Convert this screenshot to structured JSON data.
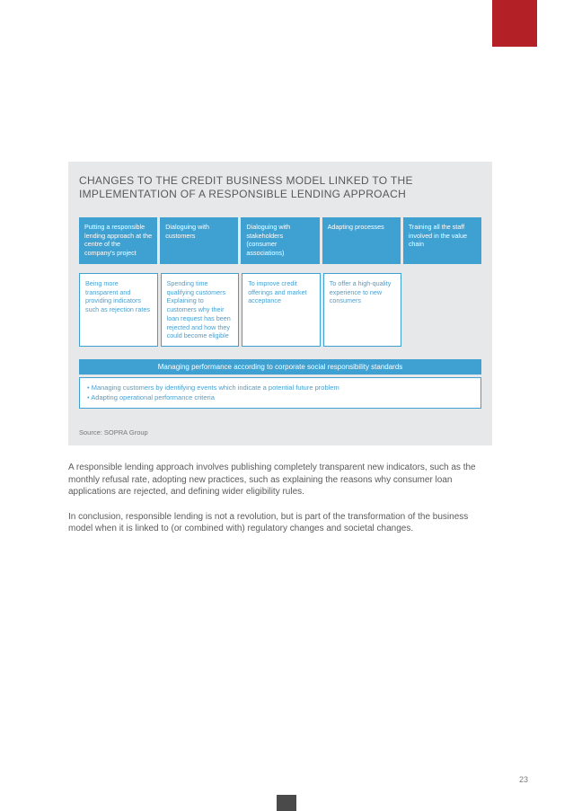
{
  "infobox": {
    "title": "CHANGES TO THE CREDIT BUSINESS MODEL LINKED TO THE IMPLEMENTATION OF A RESPONSIBLE LENDING APPROACH",
    "headers": [
      "Putting a responsible lending approach at the centre of the company's project",
      "Dialoguing with customers",
      "Dialoguing with stakeholders (consumer associations)",
      "Adapting processes",
      "Training all the staff involved in the value chain"
    ],
    "subs": [
      "Being more transparent and providing indicators such as rejection rates",
      "Spending time qualifying customers Explaining to customers why their loan request has been rejected and how they could become eligible",
      "To improve credit offerings and market acceptance",
      "To offer a high-quality experience to new consumers",
      ""
    ],
    "banner": "Managing performance according to corporate social responsibility standards",
    "bullet1": "• Managing customers by identifying events which indicate a potential future problem",
    "bullet2": "• Adapting operational performance criteria",
    "source": "Source: SOPRA Group"
  },
  "body": {
    "p1": "A responsible lending approach involves publishing completely transparent new indicators, such as the monthly refusal rate, adopting new practices, such as explaining the reasons why consumer loan applications are rejected, and defining wider eligibility rules.",
    "p2": "In conclusion, responsible lending is not a revolution, but is part of the transformation of the business model when it is linked to (or combined with) regulatory changes and societal changes."
  },
  "page": {
    "num": "23"
  }
}
